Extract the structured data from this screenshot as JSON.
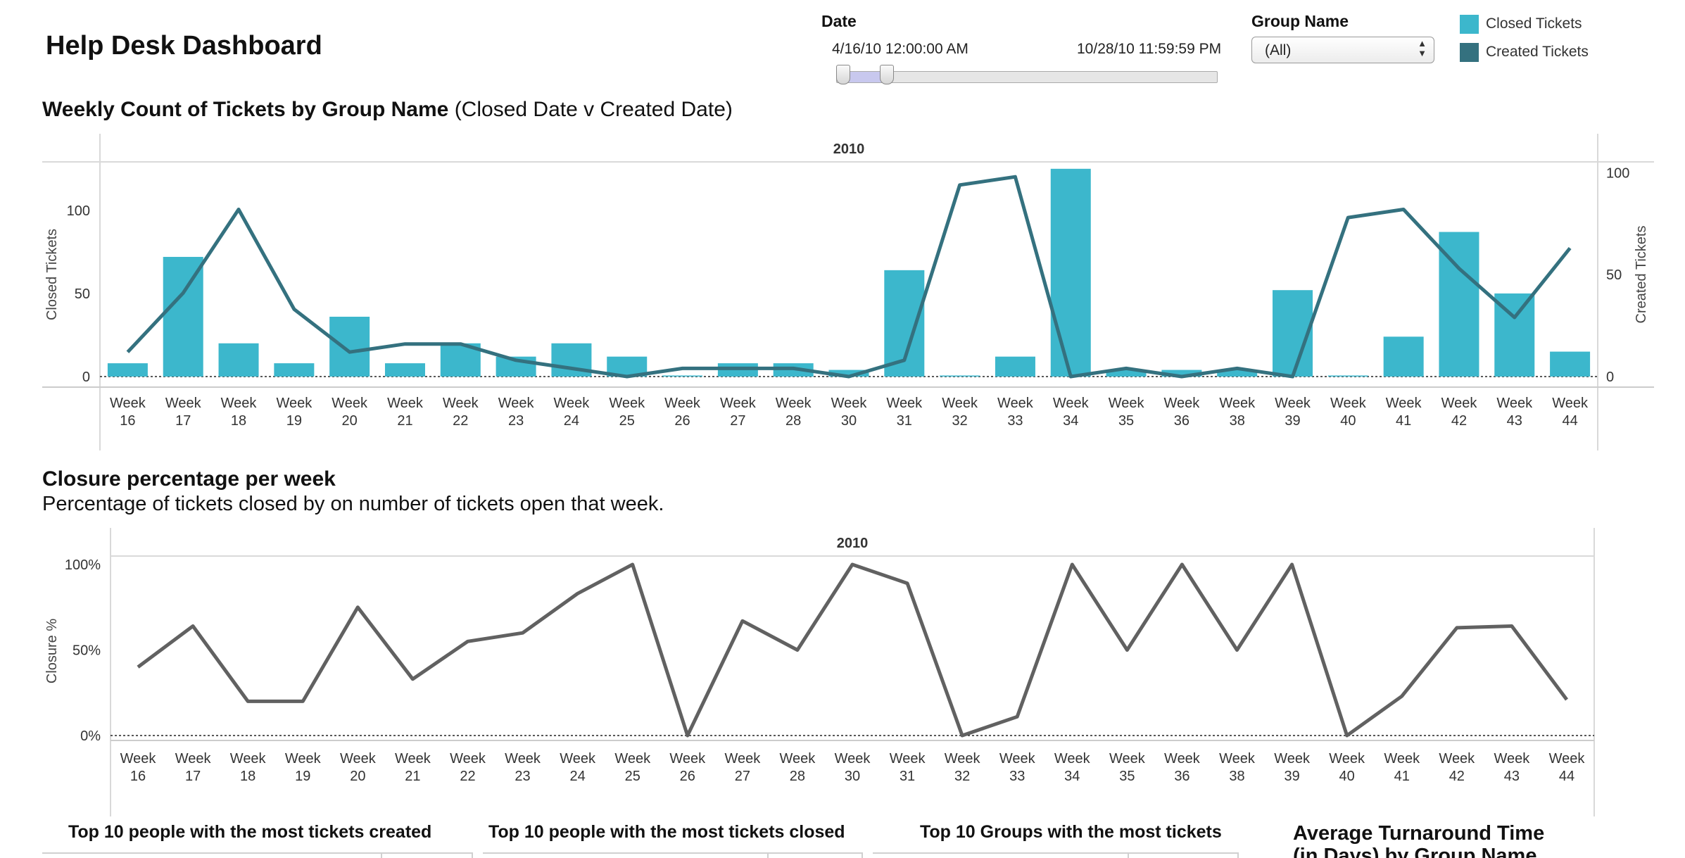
{
  "app": {
    "title": "Help Desk Dashboard"
  },
  "filters": {
    "date": {
      "label": "Date",
      "start": "4/16/10 12:00:00 AM",
      "end": "10/28/10 11:59:59 PM"
    },
    "group_name": {
      "label": "Group Name",
      "selected": "(All)"
    }
  },
  "legend": [
    {
      "label": "Closed Tickets",
      "color": "#3cb7cc"
    },
    {
      "label": "Created Tickets",
      "color": "#34717f"
    }
  ],
  "chart1": {
    "title_bold": "Weekly Count of Tickets by Group Name",
    "title_rest": " (Closed Date v Created Date)"
  },
  "chart2": {
    "title": "Closure percentage per week",
    "subtitle": "Percentage of tickets closed by on number of tickets open that week."
  },
  "bottom": {
    "top_created": "Top 10 people with the most tickets created",
    "top_closed": "Top 10 people with the most tickets closed",
    "top_groups": "Top 10 Groups with the most tickets",
    "avg_turnaround": [
      "Average Turnaround Time",
      "(in Days) by Group Name"
    ]
  },
  "chart_data": [
    {
      "type": "bar",
      "header": "2010",
      "categories": [
        "Week 16",
        "Week 17",
        "Week 18",
        "Week 19",
        "Week 20",
        "Week 21",
        "Week 22",
        "Week 23",
        "Week 24",
        "Week 25",
        "Week 26",
        "Week 27",
        "Week 28",
        "Week 30",
        "Week 31",
        "Week 32",
        "Week 33",
        "Week 34",
        "Week 35",
        "Week 36",
        "Week 38",
        "Week 39",
        "Week 40",
        "Week 41",
        "Week 42",
        "Week 43",
        "Week 44"
      ],
      "ylabel": "Closed Tickets",
      "y2label": "Created Tickets",
      "ylim": [
        0,
        130
      ],
      "y2lim": [
        0,
        106
      ],
      "yticks": [
        0,
        50,
        100
      ],
      "y2ticks": [
        0,
        50,
        100
      ],
      "series": [
        {
          "name": "Closed Tickets",
          "type": "bar",
          "axis": "left",
          "color": "#3cb7cc",
          "values": [
            8,
            72,
            20,
            8,
            36,
            8,
            20,
            12,
            20,
            12,
            0,
            8,
            8,
            4,
            64,
            0,
            12,
            125,
            4,
            4,
            4,
            52,
            0,
            24,
            87,
            50,
            15
          ]
        },
        {
          "name": "Created Tickets",
          "type": "line",
          "axis": "right",
          "color": "#34717f",
          "values": [
            12,
            41,
            82,
            33,
            12,
            16,
            16,
            8,
            4,
            0,
            4,
            4,
            4,
            0,
            8,
            94,
            98,
            0,
            4,
            0,
            4,
            0,
            78,
            82,
            53,
            29,
            63
          ]
        }
      ]
    },
    {
      "type": "line",
      "header": "2010",
      "categories": [
        "Week 16",
        "Week 17",
        "Week 18",
        "Week 19",
        "Week 20",
        "Week 21",
        "Week 22",
        "Week 23",
        "Week 24",
        "Week 25",
        "Week 26",
        "Week 27",
        "Week 28",
        "Week 30",
        "Week 31",
        "Week 32",
        "Week 33",
        "Week 34",
        "Week 35",
        "Week 36",
        "Week 38",
        "Week 39",
        "Week 40",
        "Week 41",
        "Week 42",
        "Week 43",
        "Week 44"
      ],
      "ylabel": "Closure %",
      "ylim": [
        0,
        1.05
      ],
      "yticks": [
        0,
        0.5,
        1
      ],
      "ytick_labels": [
        "0%",
        "50%",
        "100%"
      ],
      "series": [
        {
          "name": "Closure %",
          "color": "#616161",
          "values": [
            0.4,
            0.64,
            0.2,
            0.2,
            0.75,
            0.33,
            0.55,
            0.6,
            0.83,
            1.0,
            0.0,
            0.67,
            0.5,
            1.0,
            0.89,
            0.0,
            0.11,
            1.0,
            0.5,
            1.0,
            0.5,
            1.0,
            0.0,
            0.23,
            0.63,
            0.64,
            0.21
          ]
        }
      ]
    }
  ]
}
